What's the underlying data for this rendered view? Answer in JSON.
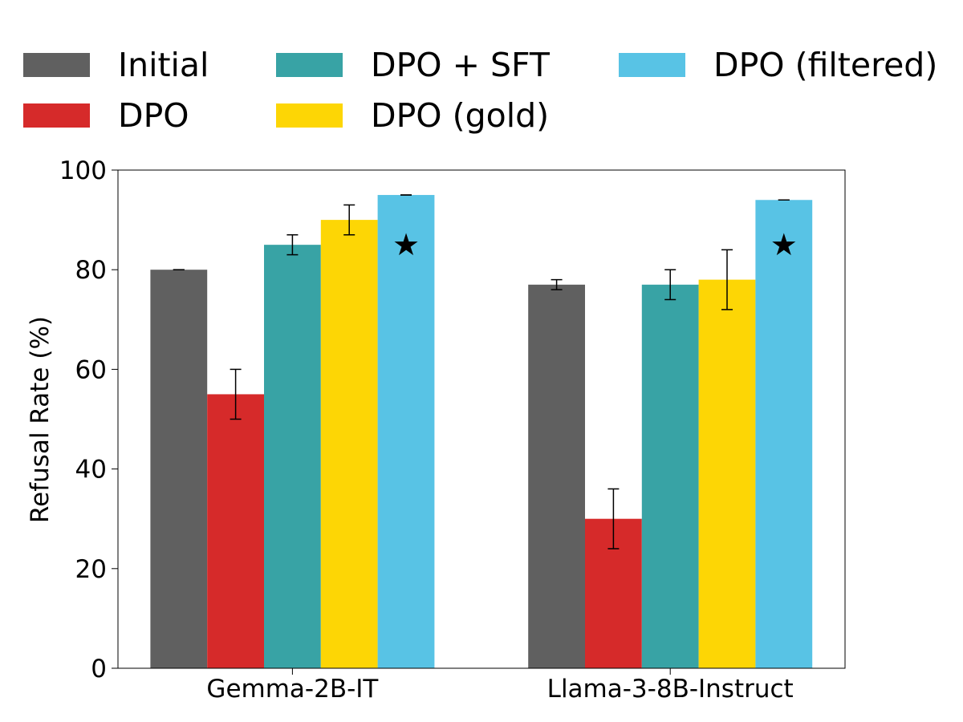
{
  "chart_data": {
    "type": "bar",
    "categories": [
      "Gemma-2B-IT",
      "Llama-3-8B-Instruct"
    ],
    "series": [
      {
        "name": "Initial",
        "color": "#606060",
        "values": [
          80,
          77
        ],
        "errors": [
          0,
          1
        ]
      },
      {
        "name": "DPO",
        "color": "#d62a2a",
        "values": [
          55,
          30
        ],
        "errors": [
          5,
          6
        ]
      },
      {
        "name": "DPO + SFT",
        "color": "#38a3a5",
        "values": [
          85,
          77
        ],
        "errors": [
          2,
          3
        ]
      },
      {
        "name": "DPO (gold)",
        "color": "#fdd605",
        "values": [
          90,
          78
        ],
        "errors": [
          3,
          6
        ]
      },
      {
        "name": "DPO (filtered)",
        "color": "#58c3e5",
        "values": [
          95,
          94
        ],
        "errors": [
          0,
          0
        ]
      }
    ],
    "star_marker": {
      "symbol": "★",
      "series": "DPO (filtered)",
      "y": 85
    },
    "xlabel": "",
    "ylabel": "Refusal Rate (%)",
    "ylim": [
      0,
      100
    ],
    "yticks": [
      0,
      20,
      40,
      60,
      80,
      100
    ],
    "grid": false,
    "legend_position": "top"
  }
}
